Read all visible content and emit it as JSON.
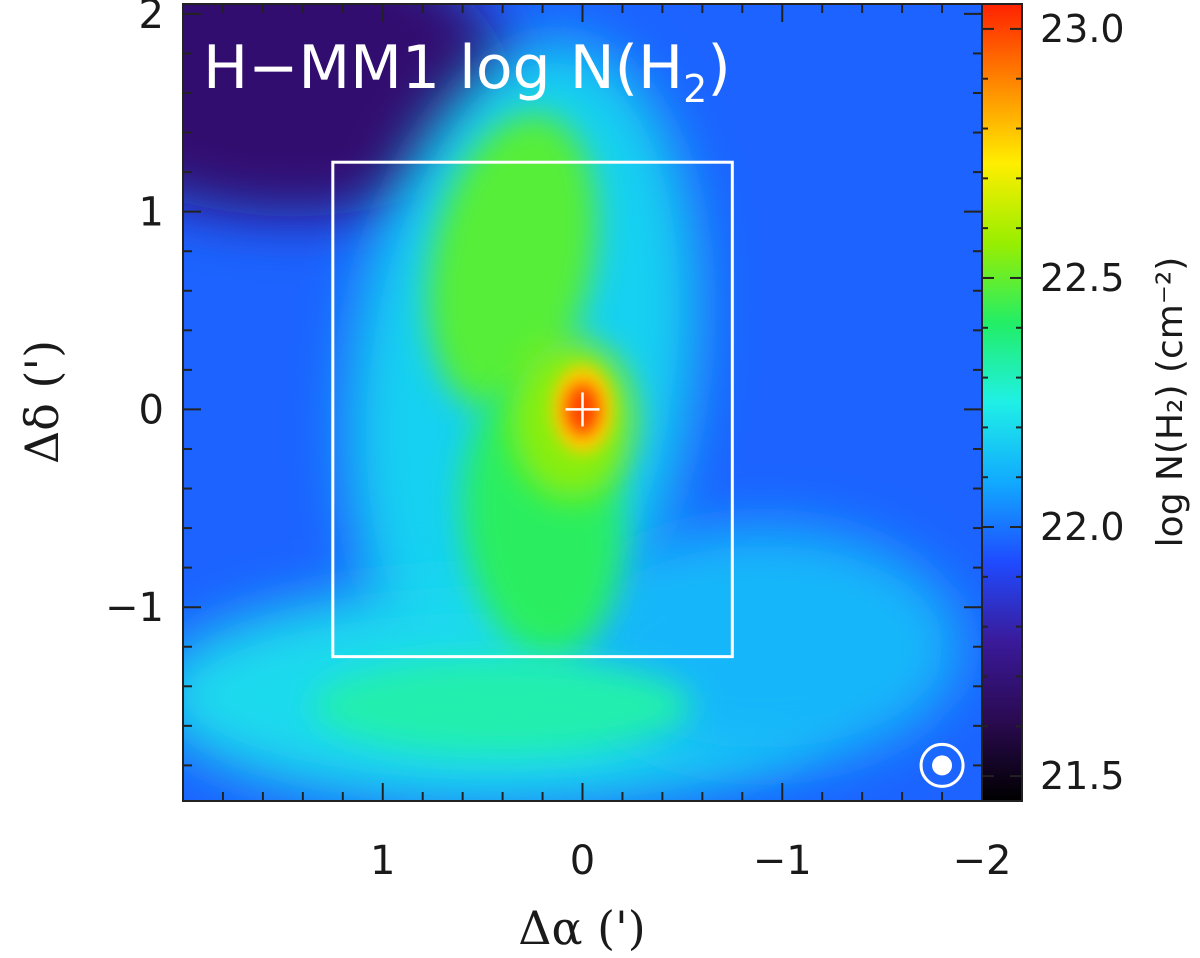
{
  "chart_data": {
    "type": "heatmap",
    "title": "H−MM1  log N(H",
    "title_sub": "2",
    "title_end": ")",
    "xlabel": "Δα  (')",
    "ylabel": "Δδ  (')",
    "xlim": [
      2.0,
      -2.0
    ],
    "ylim": [
      -1.98,
      2.05
    ],
    "x_ticks": [
      {
        "value": 1,
        "label": "1"
      },
      {
        "value": 0,
        "label": "0"
      },
      {
        "value": -1,
        "label": "−1"
      },
      {
        "value": -2,
        "label": "−2"
      }
    ],
    "y_ticks": [
      {
        "value": -1,
        "label": "−1"
      },
      {
        "value": 0,
        "label": "0"
      },
      {
        "value": 1,
        "label": "1"
      },
      {
        "value": 2,
        "label": "2"
      }
    ],
    "colorbar": {
      "label": "log N(H₂)  (cm⁻²)",
      "range": [
        21.45,
        23.05
      ],
      "ticks": [
        {
          "value": 21.5,
          "label": "21.5"
        },
        {
          "value": 22.0,
          "label": "22.0"
        },
        {
          "value": 22.5,
          "label": "22.5"
        },
        {
          "value": 23.0,
          "label": "23.0"
        }
      ],
      "colormap": [
        "#000000",
        "#2a0a50",
        "#3a1a9a",
        "#1f4bff",
        "#11aaff",
        "#1ff0e6",
        "#22ee66",
        "#99ee00",
        "#ffee00",
        "#ff8800",
        "#ff2200"
      ]
    },
    "background_level": 21.97,
    "peak_position": [
      0.0,
      0.0
    ],
    "peak_value": 23.0,
    "features": [
      {
        "name": "peak",
        "x": 0.0,
        "y": 0.0,
        "value": 23.0
      },
      {
        "name": "filament-north",
        "x": 0.35,
        "y": 0.75,
        "value": 22.48
      },
      {
        "name": "filament-south",
        "x": 0.2,
        "y": -0.55,
        "value": 22.42
      },
      {
        "name": "southern-ridge",
        "x": 0.4,
        "y": -1.5,
        "value": 22.32
      },
      {
        "name": "low-region-northwest",
        "x": 1.65,
        "y": 1.75,
        "value": 21.68
      }
    ],
    "box": {
      "x_range": [
        1.25,
        -0.75
      ],
      "y_range": [
        -1.25,
        1.25
      ],
      "color": "#ffffff"
    },
    "marker": {
      "symbol": "+",
      "x": 0.0,
      "y": 0.0,
      "color": "#ffffff"
    },
    "beam_symbol": {
      "x": -1.8,
      "y": -1.8,
      "color": "#ffffff"
    }
  }
}
